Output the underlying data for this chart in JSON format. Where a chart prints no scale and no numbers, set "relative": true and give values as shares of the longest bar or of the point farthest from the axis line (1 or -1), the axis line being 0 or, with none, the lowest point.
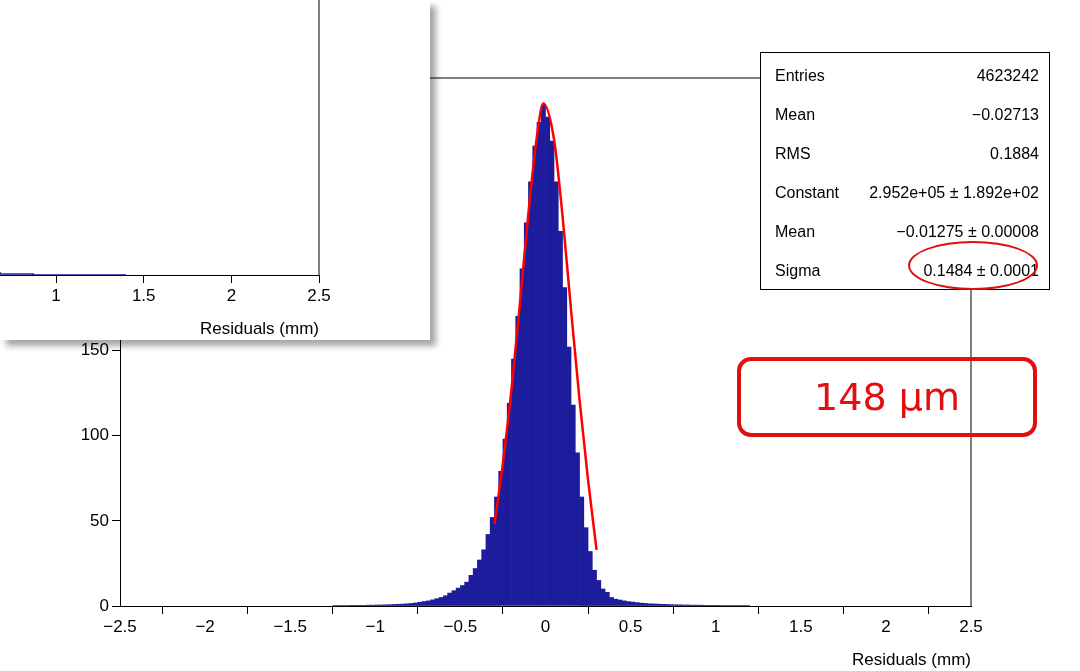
{
  "chart_data": [
    {
      "type": "histogram",
      "xlabel": "Residuals (mm)",
      "xlim": [
        -2.5,
        2.5
      ],
      "ylim": [
        0,
        310
      ],
      "xticks": [
        {
          "value": -2.5,
          "label": "−2.5"
        },
        {
          "value": -2,
          "label": "−2"
        },
        {
          "value": -1.5,
          "label": "−1.5"
        },
        {
          "value": -1,
          "label": "−1"
        },
        {
          "value": -0.5,
          "label": "−0.5"
        },
        0,
        0.5,
        1,
        1.5,
        2,
        2.5
      ],
      "yticks": [
        0,
        50,
        100,
        150
      ],
      "series": [
        {
          "type": "histogram",
          "color": "#1c1c9c",
          "bins": [
            -1.25,
            -1.225,
            -1.2,
            -1.175,
            -1.15,
            -1.125,
            -1.1,
            -1.075,
            -1.05,
            -1.025,
            -1,
            -0.975,
            -0.95,
            -0.925,
            -0.9,
            -0.875,
            -0.85,
            -0.825,
            -0.8,
            -0.775,
            -0.75,
            -0.725,
            -0.7,
            -0.675,
            -0.65,
            -0.625,
            -0.6,
            -0.575,
            -0.55,
            -0.525,
            -0.5,
            -0.475,
            -0.45,
            -0.425,
            -0.4,
            -0.375,
            -0.35,
            -0.325,
            -0.3,
            -0.275,
            -0.25,
            -0.225,
            -0.2,
            -0.175,
            -0.15,
            -0.125,
            -0.1,
            -0.075,
            -0.05,
            -0.025,
            0,
            0.025,
            0.05,
            0.075,
            0.1,
            0.125,
            0.15,
            0.175,
            0.2,
            0.225,
            0.25,
            0.275,
            0.3,
            0.325,
            0.35,
            0.375,
            0.4,
            0.425,
            0.45,
            0.475,
            0.5,
            0.525,
            0.55,
            0.575,
            0.6,
            0.625,
            0.65,
            0.675,
            0.7,
            0.725,
            0.75,
            0.775,
            0.8,
            0.825,
            0.85,
            0.875,
            0.9,
            0.925,
            0.95,
            0.975,
            1,
            1.025,
            1.05,
            1.075,
            1.1,
            1.125,
            1.15,
            1.175,
            1.2
          ],
          "values": [
            0.3,
            0.3,
            0.3,
            0.3,
            0.4,
            0.4,
            0.4,
            0.4,
            0.5,
            0.5,
            0.6,
            0.6,
            0.7,
            0.8,
            0.9,
            1,
            1.1,
            1.3,
            1.5,
            1.8,
            2.2,
            2.6,
            3,
            3.6,
            4.3,
            5,
            6,
            7.6,
            9,
            10.5,
            12,
            14,
            18,
            22,
            27,
            33,
            42,
            52,
            64,
            79,
            98,
            119,
            145,
            170,
            198,
            225,
            249,
            270,
            284,
            294,
            287,
            273,
            249,
            220,
            187,
            152,
            118,
            90,
            64,
            46,
            32,
            21,
            15,
            10,
            8,
            5,
            4,
            3.5,
            3,
            2.6,
            2.3,
            2,
            1.7,
            1.5,
            1.3,
            1.2,
            1.1,
            1,
            0.9,
            0.8,
            0.7,
            0.7,
            0.6,
            0.6,
            0.5,
            0.5,
            0.5,
            0.4,
            0.4,
            0.4,
            0.4,
            0.3,
            0.3,
            0.3,
            0.3,
            0.3,
            0.3,
            0.3
          ]
        },
        {
          "type": "line",
          "color": "#ff0000",
          "x": [
            -0.3,
            -0.25,
            -0.2,
            -0.15,
            -0.1,
            -0.05,
            -0.013,
            0.05,
            0.1,
            0.15,
            0.2,
            0.25,
            0.3
          ],
          "values": [
            48,
            84,
            127,
            178,
            231,
            276,
            295,
            274,
            229,
            174,
            121,
            74,
            33
          ]
        }
      ],
      "annotations": [
        "Entries",
        "4623242",
        "Mean",
        "−0.02713",
        "RMS",
        "0.1884",
        "Constant",
        "2.952e+05 ± 1.892e+02",
        "Mean",
        "−0.01275 ± 0.00008",
        "Sigma",
        "0.1484 ± 0.0001",
        "148 μm"
      ]
    },
    {
      "type": "step",
      "relative": true,
      "xlabel": "Residuals (mm)",
      "xlim": [
        0.68,
        2.5
      ],
      "xticks": [
        1,
        1.5,
        2,
        2.5
      ],
      "series": [
        {
          "color": "#1c1c9c",
          "x": [
            0.68,
            0.87,
            1.0,
            1.4
          ],
          "values": [
            1,
            0.33,
            0,
            0
          ]
        }
      ]
    }
  ]
}
